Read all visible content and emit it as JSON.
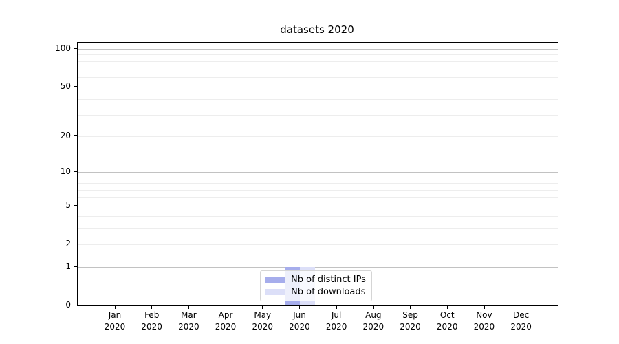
{
  "chart_data": {
    "type": "bar",
    "title": "datasets 2020",
    "categories": [
      "Jan 2020",
      "Feb 2020",
      "Mar 2020",
      "Apr 2020",
      "May 2020",
      "Jun 2020",
      "Jul 2020",
      "Aug 2020",
      "Sep 2020",
      "Oct 2020",
      "Nov 2020",
      "Dec 2020"
    ],
    "series": [
      {
        "name": "Nb of distinct IPs",
        "color": "#a6adec",
        "values": [
          0,
          0,
          0,
          0,
          0,
          1,
          0,
          0,
          0,
          0,
          0,
          0
        ]
      },
      {
        "name": "Nb of downloads",
        "color": "#dcdff8",
        "values": [
          0,
          0,
          0,
          0,
          0,
          1,
          0,
          0,
          0,
          0,
          0,
          0
        ]
      }
    ],
    "y_axis": {
      "scale": "log1p",
      "ylim": [
        0,
        112
      ],
      "tick_values": [
        0,
        1,
        2,
        5,
        10,
        20,
        50,
        100
      ],
      "major_gridlines": [
        1,
        10,
        100
      ],
      "minor_gridlines": [
        2,
        3,
        4,
        5,
        6,
        7,
        8,
        9,
        20,
        30,
        40,
        50,
        60,
        70,
        80,
        90
      ],
      "major_grid_color": "#c2c2c2",
      "minor_grid_color": "#ededed"
    },
    "legend": {
      "position": "bottom-center"
    },
    "grid": "on"
  }
}
